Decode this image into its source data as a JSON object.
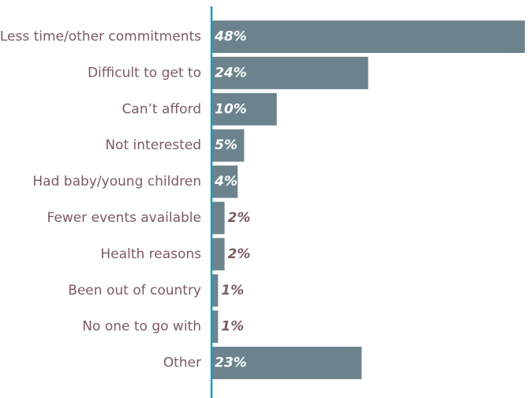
{
  "chart_data": {
    "type": "bar",
    "orientation": "horizontal",
    "title": "",
    "xlabel": "",
    "ylabel": "",
    "categories": [
      "Less time/other commitments",
      "Difficult to get to",
      "Can’t afford",
      "Not interested",
      "Had baby/young children",
      "Fewer events available",
      "Health reasons",
      "Been out of country",
      "No one to go with",
      "Other"
    ],
    "values": [
      48,
      24,
      10,
      5,
      4,
      2,
      2,
      1,
      1,
      23
    ],
    "value_labels": [
      "48%",
      "24%",
      "10%",
      "5%",
      "4%",
      "2%",
      "2%",
      "1%",
      "1%",
      "23%"
    ],
    "xlim": [
      0,
      48
    ],
    "grid": false,
    "legend": "none",
    "colors": {
      "bar": "#6c838d",
      "axis": "#1a9bc2",
      "category_text": "#7a5c62",
      "value_text_inside": "#ffffff",
      "value_text_outside": "#7a5c62"
    }
  }
}
